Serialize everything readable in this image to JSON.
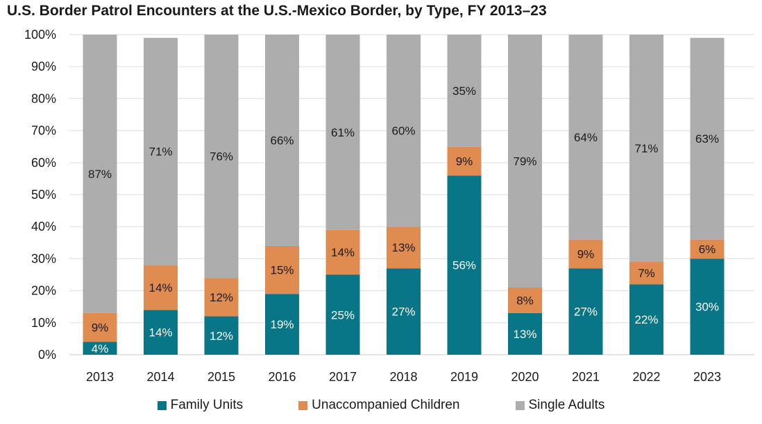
{
  "chart_data": {
    "type": "bar",
    "stacked": true,
    "title": "U.S. Border Patrol Encounters at the U.S.-Mexico Border, by Type, FY 2013–23",
    "xlabel": "",
    "ylabel": "",
    "ylim": [
      0,
      100
    ],
    "yticks": [
      "0%",
      "10%",
      "20%",
      "30%",
      "40%",
      "50%",
      "60%",
      "70%",
      "80%",
      "90%",
      "100%"
    ],
    "grid": true,
    "legend_position": "bottom",
    "categories": [
      "2013",
      "2014",
      "2015",
      "2016",
      "2017",
      "2018",
      "2019",
      "2020",
      "2021",
      "2022",
      "2023"
    ],
    "series": [
      {
        "name": "Family Units",
        "color": "#087686",
        "label_color": "#ffffff",
        "values": [
          4,
          14,
          12,
          19,
          25,
          27,
          56,
          13,
          27,
          22,
          30
        ]
      },
      {
        "name": "Unaccompanied Children",
        "color": "#e08b50",
        "label_color": "#1a1a1a",
        "values": [
          9,
          14,
          12,
          15,
          14,
          13,
          9,
          8,
          9,
          7,
          6
        ]
      },
      {
        "name": "Single Adults",
        "color": "#adadad",
        "label_color": "#1a1a1a",
        "values": [
          87,
          71,
          76,
          66,
          61,
          60,
          35,
          79,
          64,
          71,
          63
        ]
      }
    ]
  }
}
